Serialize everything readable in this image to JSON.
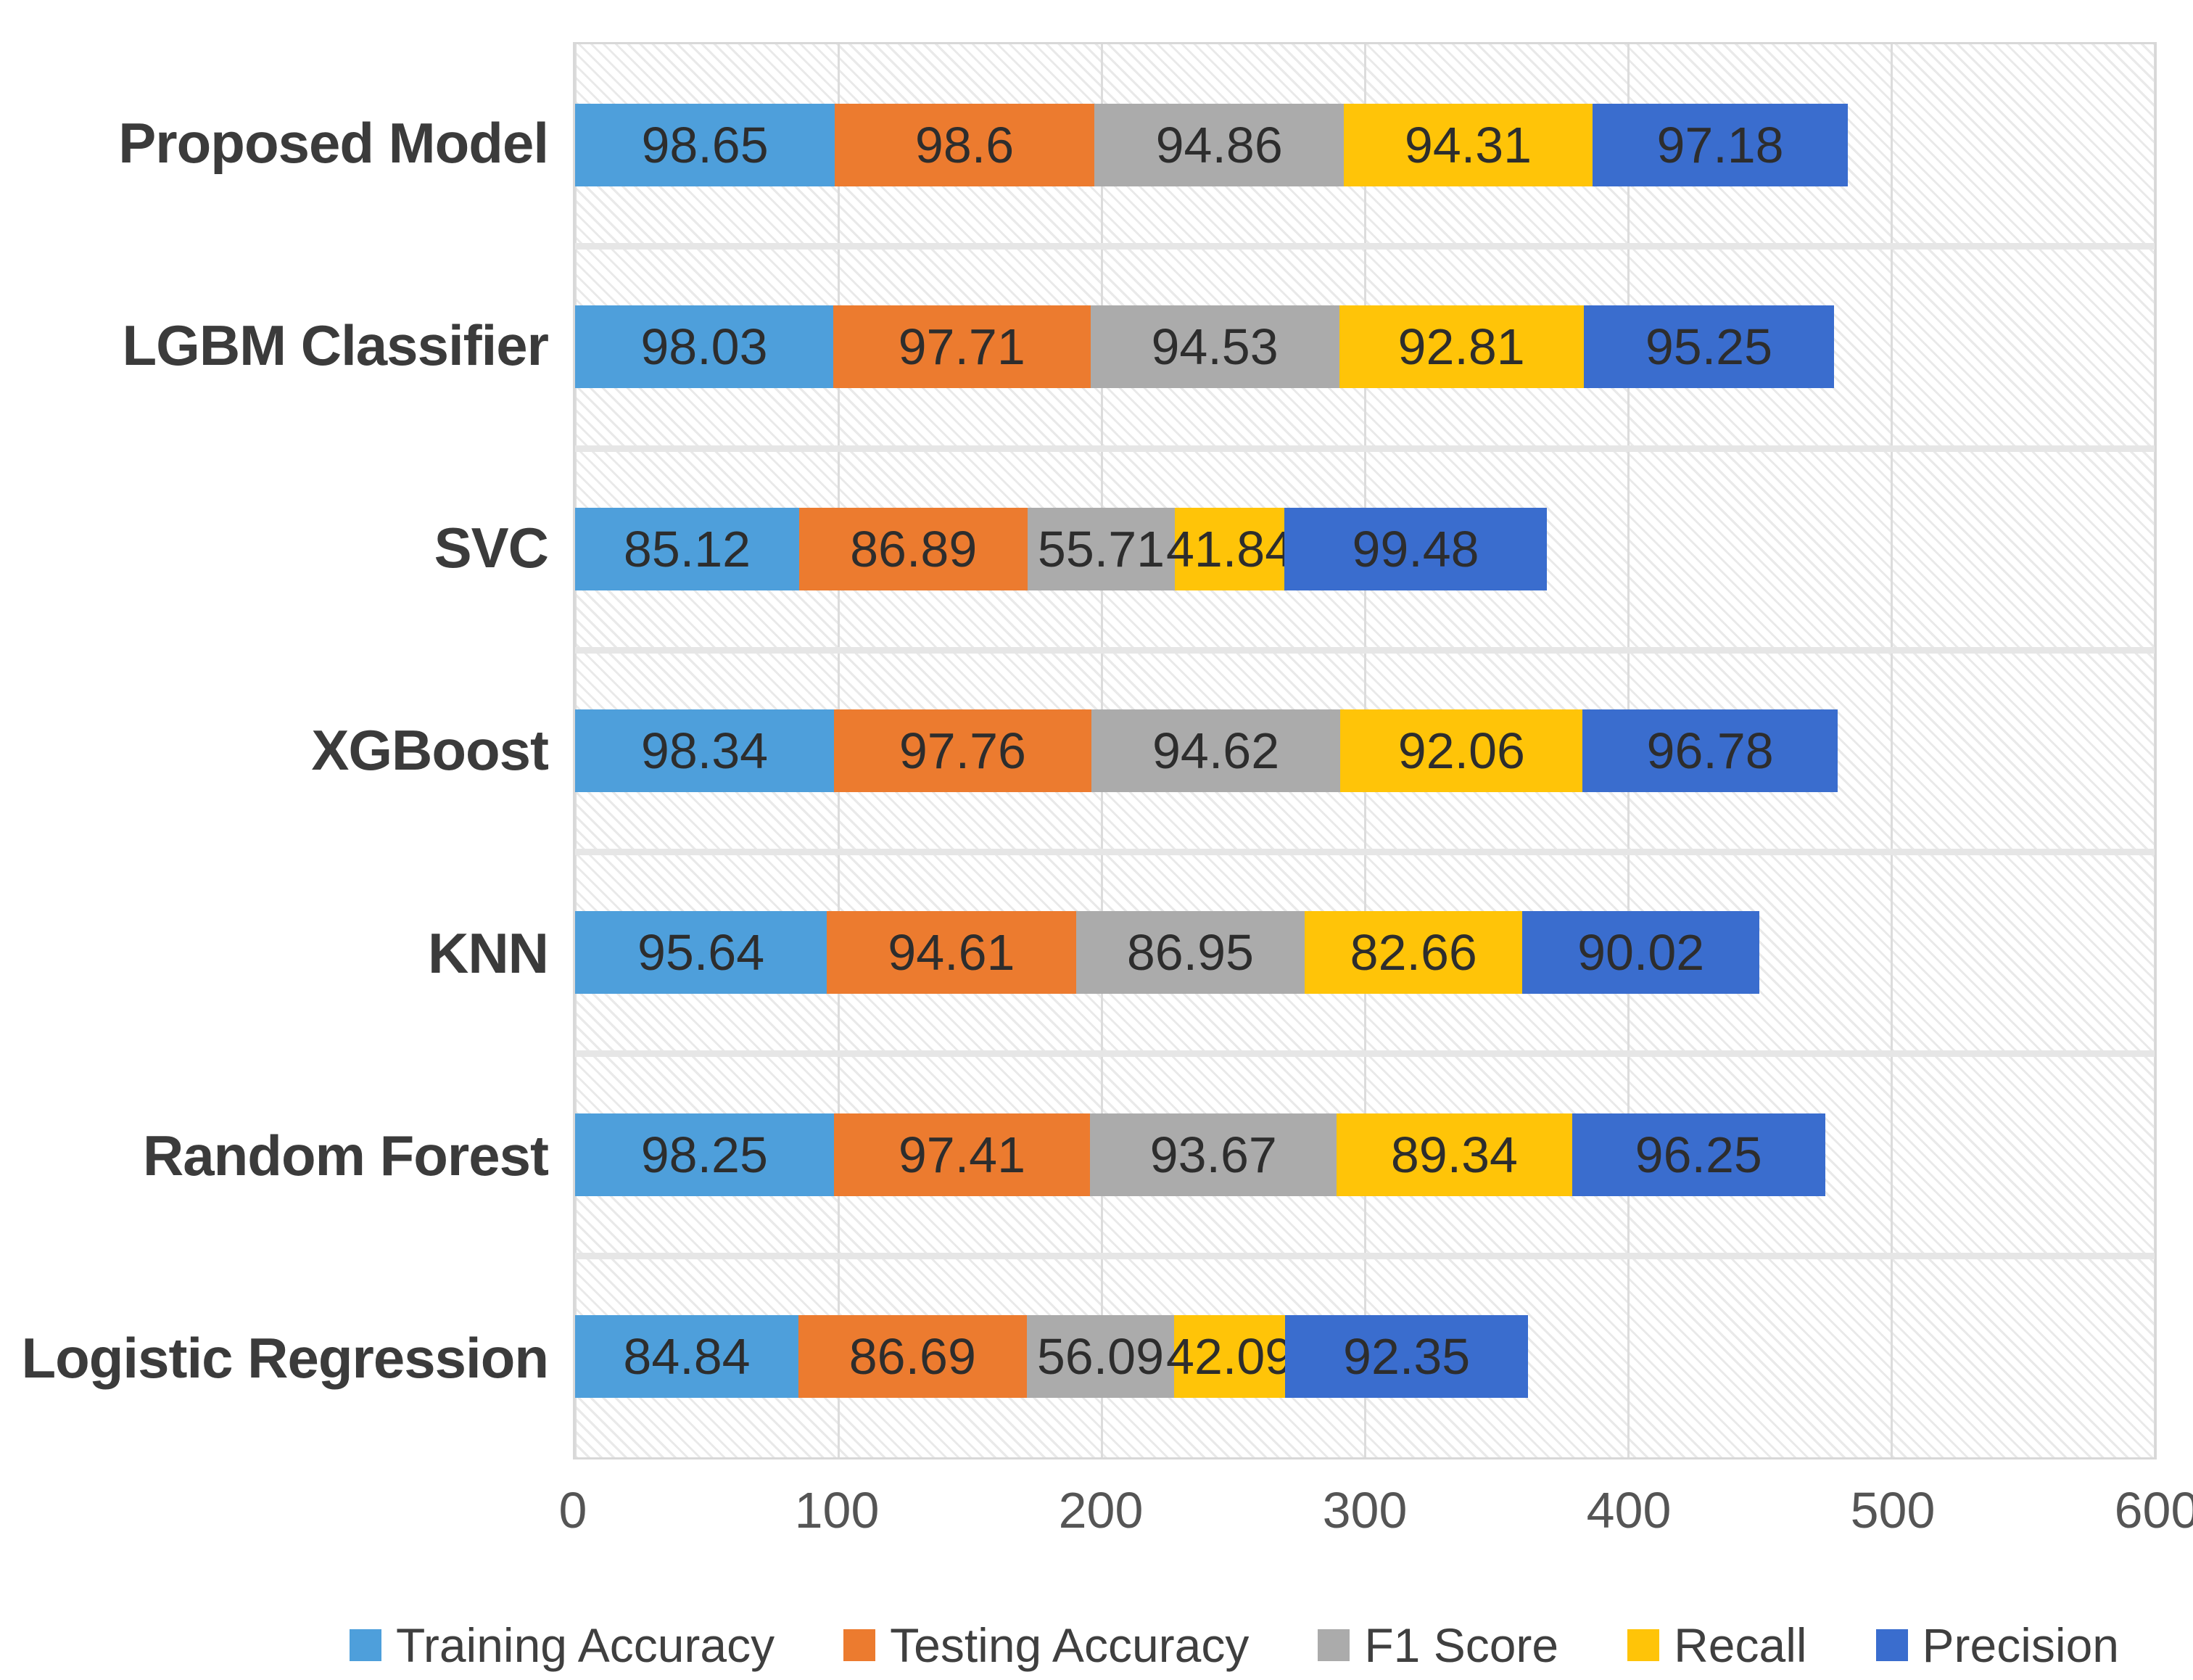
{
  "chart_data": {
    "type": "bar",
    "orientation": "horizontal",
    "stacked": true,
    "title": "",
    "xlabel": "",
    "ylabel": "",
    "xlim": [
      0,
      600
    ],
    "x_ticks": [
      0,
      100,
      200,
      300,
      400,
      500,
      600
    ],
    "grid": true,
    "legend_position": "bottom",
    "plot_background": "diagonal-hatch",
    "categories": [
      "Proposed Model",
      "LGBM Classifier",
      "SVC",
      "XGBoost",
      "KNN",
      "Random Forest",
      "Logistic Regression"
    ],
    "series": [
      {
        "name": "Training Accuracy",
        "color": "#4E9FDB",
        "values": [
          98.65,
          98.03,
          85.12,
          98.34,
          95.64,
          98.25,
          84.84
        ]
      },
      {
        "name": "Testing Accuracy",
        "color": "#EC7B2F",
        "values": [
          98.6,
          97.71,
          86.89,
          97.76,
          94.61,
          97.41,
          86.69
        ]
      },
      {
        "name": "F1 Score",
        "color": "#ABABAB",
        "values": [
          94.86,
          94.53,
          55.71,
          94.62,
          86.95,
          93.67,
          56.09
        ]
      },
      {
        "name": "Recall",
        "color": "#FFC408",
        "values": [
          94.31,
          92.81,
          41.84,
          92.06,
          82.66,
          89.34,
          42.09
        ]
      },
      {
        "name": "Precision",
        "color": "#3A6DCE",
        "values": [
          97.18,
          95.25,
          99.48,
          96.78,
          90.02,
          96.25,
          92.35
        ]
      }
    ]
  }
}
